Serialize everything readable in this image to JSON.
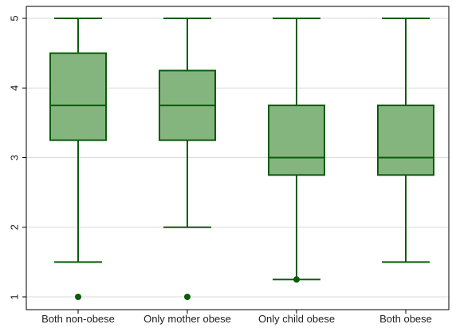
{
  "chart_data": {
    "type": "box",
    "categories": [
      "Both non-obese",
      "Only mother obese",
      "Only child obese",
      "Both obese"
    ],
    "boxes": [
      {
        "category": "Both non-obese",
        "whisker_low": 1.5,
        "q1": 3.25,
        "median": 3.75,
        "q3": 4.5,
        "whisker_high": 5,
        "outliers": [
          1
        ]
      },
      {
        "category": "Only mother obese",
        "whisker_low": 2,
        "q1": 3.25,
        "median": 3.75,
        "q3": 4.25,
        "whisker_high": 5,
        "outliers": [
          1
        ]
      },
      {
        "category": "Only child obese",
        "whisker_low": 1.25,
        "q1": 2.75,
        "median": 3,
        "q3": 3.75,
        "whisker_high": 5,
        "outliers": [
          1.25
        ]
      },
      {
        "category": "Both obese",
        "whisker_low": 1.5,
        "q1": 2.75,
        "median": 3,
        "q3": 3.75,
        "whisker_high": 5,
        "outliers": []
      }
    ],
    "y_ticks": [
      1,
      2,
      3,
      4,
      5
    ],
    "ylim": [
      1,
      5
    ],
    "grid": true,
    "title": "",
    "xlabel": "",
    "ylabel": "",
    "colors": {
      "box_fill": "#85b57e",
      "box_stroke": "#0a5c0a",
      "grid": "#d9d9d9",
      "axis": "#000000"
    }
  }
}
